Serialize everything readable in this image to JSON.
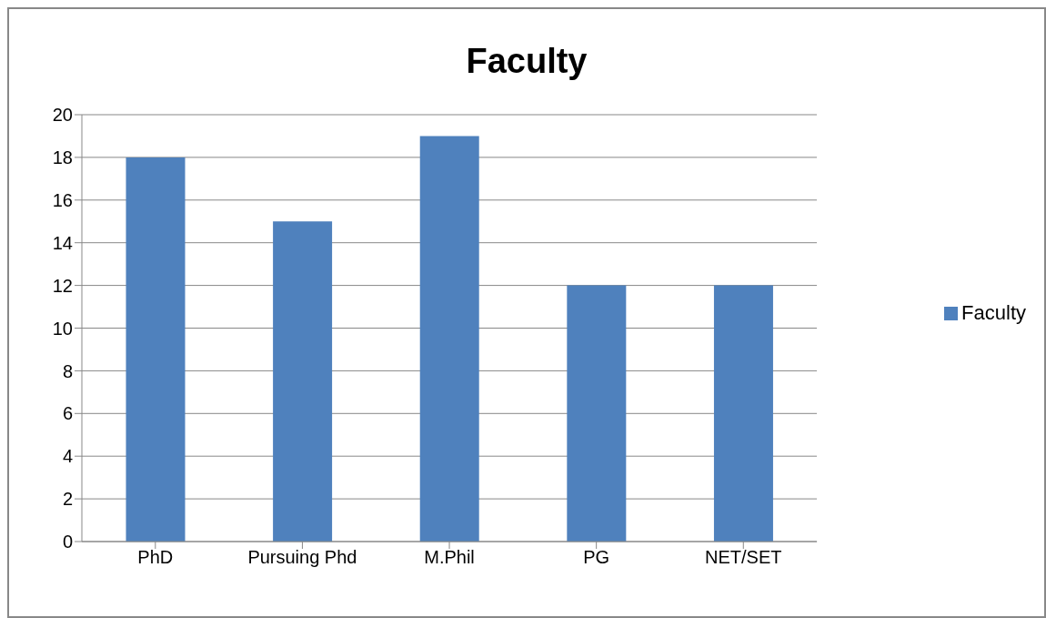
{
  "chart_data": {
    "type": "bar",
    "title": "Faculty",
    "categories": [
      "PhD",
      "Pursuing Phd",
      "M.Phil",
      "PG",
      "NET/SET"
    ],
    "series": [
      {
        "name": "Faculty",
        "color": "#4f81bd",
        "values": [
          18,
          15,
          19,
          12,
          12
        ]
      }
    ],
    "ylim": [
      0,
      20
    ],
    "yticks": [
      0,
      2,
      4,
      6,
      8,
      10,
      12,
      14,
      16,
      18,
      20
    ],
    "grid": "y",
    "legend": "right"
  }
}
